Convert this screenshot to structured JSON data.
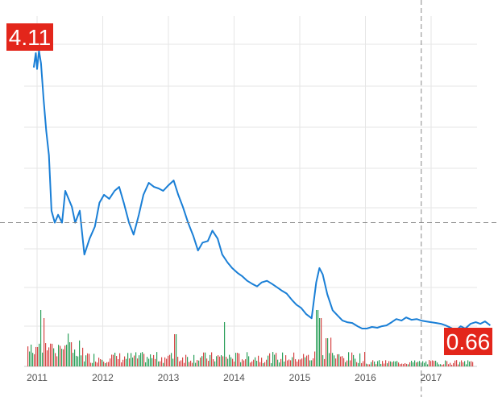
{
  "chart_data": {
    "type": "line",
    "title": "",
    "xlabel": "",
    "ylabel": "",
    "x_tick_labels": [
      "2011",
      "2012",
      "2013",
      "2014",
      "2015",
      "2016",
      "2017"
    ],
    "ylim": [
      0,
      4.3
    ],
    "grid": true,
    "legend": "none",
    "colors": {
      "line": "#1a7fd6",
      "badge": "#e3261b",
      "grid": "#e6e6e6",
      "crosshair": "#888888",
      "volume_up": "#2ca05a",
      "volume_down": "#d64545"
    },
    "max_label": "4.11",
    "last_label": "0.66",
    "crosshair": {
      "x": 2016.85,
      "y": 1.95
    },
    "series": [
      {
        "x": [
          2010.95,
          2010.98,
          2011.0,
          2011.03,
          2011.06,
          2011.1,
          2011.14,
          2011.18,
          2011.22,
          2011.27,
          2011.32,
          2011.38,
          2011.43,
          2011.48,
          2011.53,
          2011.58,
          2011.65,
          2011.72,
          2011.8,
          2011.88,
          2011.95,
          2012.02,
          2012.1,
          2012.18,
          2012.25,
          2012.32,
          2012.4,
          2012.47,
          2012.55,
          2012.62,
          2012.7,
          2012.78,
          2012.85,
          2012.92,
          2013.0,
          2013.08,
          2013.15,
          2013.22,
          2013.3,
          2013.38,
          2013.45,
          2013.52,
          2013.6,
          2013.67,
          2013.75,
          2013.82,
          2013.9,
          2013.97,
          2014.05,
          2014.12,
          2014.2,
          2014.28,
          2014.35,
          2014.42,
          2014.5,
          2014.58,
          2014.65,
          2014.72,
          2014.8,
          2014.88,
          2014.95,
          2015.02,
          2015.1,
          2015.18,
          2015.25,
          2015.3,
          2015.35,
          2015.42,
          2015.5,
          2015.58,
          2015.65,
          2015.72,
          2015.8,
          2015.88,
          2015.95,
          2016.02,
          2016.1,
          2016.18,
          2016.25,
          2016.32,
          2016.4,
          2016.47,
          2016.55,
          2016.62,
          2016.7,
          2016.78,
          2016.85,
          2016.92,
          2017.0,
          2017.08,
          2017.15,
          2017.22,
          2017.3,
          2017.38,
          2017.45,
          2017.52,
          2017.6,
          2017.68,
          2017.75,
          2017.82,
          2017.9
        ],
        "values": [
          3.9,
          4.08,
          3.88,
          4.11,
          3.95,
          3.5,
          3.1,
          2.8,
          2.1,
          1.95,
          2.05,
          1.95,
          2.35,
          2.25,
          2.15,
          1.95,
          2.1,
          1.55,
          1.75,
          1.9,
          2.2,
          2.3,
          2.25,
          2.35,
          2.4,
          2.2,
          1.95,
          1.8,
          2.05,
          2.3,
          2.45,
          2.4,
          2.38,
          2.35,
          2.42,
          2.48,
          2.3,
          2.15,
          1.95,
          1.78,
          1.6,
          1.7,
          1.72,
          1.85,
          1.75,
          1.55,
          1.45,
          1.38,
          1.32,
          1.28,
          1.22,
          1.18,
          1.15,
          1.2,
          1.22,
          1.18,
          1.14,
          1.1,
          1.06,
          0.98,
          0.92,
          0.88,
          0.8,
          0.75,
          1.2,
          1.38,
          1.3,
          1.05,
          0.85,
          0.78,
          0.72,
          0.7,
          0.69,
          0.65,
          0.62,
          0.62,
          0.64,
          0.63,
          0.65,
          0.66,
          0.7,
          0.74,
          0.72,
          0.76,
          0.73,
          0.74,
          0.72,
          0.71,
          0.7,
          0.69,
          0.68,
          0.66,
          0.63,
          0.6,
          0.65,
          0.62,
          0.68,
          0.7,
          0.68,
          0.71,
          0.66
        ]
      }
    ]
  }
}
